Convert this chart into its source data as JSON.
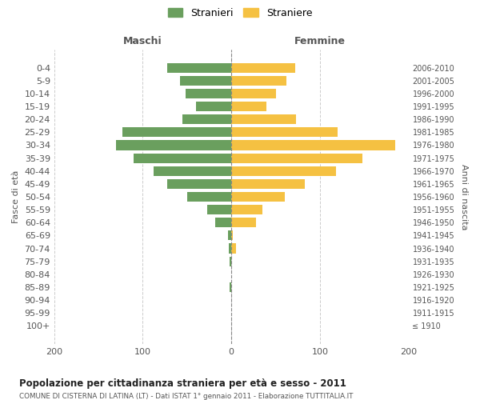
{
  "age_groups": [
    "100+",
    "95-99",
    "90-94",
    "85-89",
    "80-84",
    "75-79",
    "70-74",
    "65-69",
    "60-64",
    "55-59",
    "50-54",
    "45-49",
    "40-44",
    "35-39",
    "30-34",
    "25-29",
    "20-24",
    "15-19",
    "10-14",
    "5-9",
    "0-4"
  ],
  "birth_years": [
    "≤ 1910",
    "1911-1915",
    "1916-1920",
    "1921-1925",
    "1926-1930",
    "1931-1935",
    "1936-1940",
    "1941-1945",
    "1946-1950",
    "1951-1955",
    "1956-1960",
    "1961-1965",
    "1966-1970",
    "1971-1975",
    "1976-1980",
    "1981-1985",
    "1986-1990",
    "1991-1995",
    "1996-2000",
    "2001-2005",
    "2006-2010"
  ],
  "maschi": [
    0,
    0,
    0,
    2,
    0,
    2,
    3,
    4,
    18,
    27,
    50,
    72,
    88,
    110,
    130,
    123,
    55,
    40,
    52,
    58,
    72
  ],
  "femmine": [
    0,
    0,
    0,
    0,
    0,
    0,
    5,
    2,
    28,
    35,
    60,
    83,
    118,
    148,
    185,
    120,
    73,
    40,
    50,
    62,
    72
  ],
  "color_maschi": "#6a9f5e",
  "color_femmine": "#f5c142",
  "title": "Popolazione per cittadinanza straniera per età e sesso - 2011",
  "subtitle": "COMUNE DI CISTERNA DI LATINA (LT) - Dati ISTAT 1° gennaio 2011 - Elaborazione TUTTITALIA.IT",
  "ylabel_left": "Fasce di età",
  "ylabel_right": "Anni di nascita",
  "xlabel_left": "Maschi",
  "xlabel_right": "Femmine",
  "legend_maschi": "Stranieri",
  "legend_femmine": "Straniere",
  "xlim": 200,
  "background_color": "#ffffff",
  "grid_color": "#cccccc"
}
